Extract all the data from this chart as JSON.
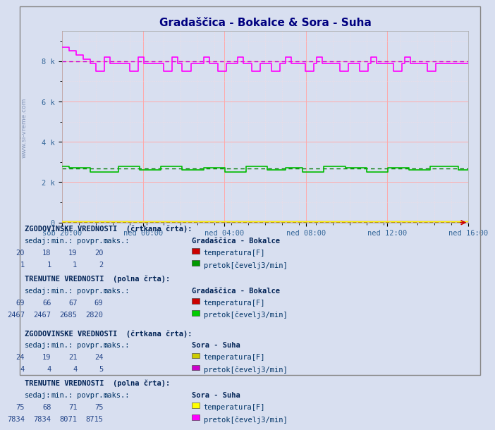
{
  "title": "Gradaščica - Bokalce & Sora - Suha",
  "bg_color": "#d8dff0",
  "ylim": [
    0,
    9500
  ],
  "yticks": [
    0,
    2000,
    4000,
    6000,
    8000
  ],
  "ytick_labels": [
    "0",
    "2 k",
    "4 k",
    "6 k",
    "8 k"
  ],
  "xtick_labels": [
    "sob 20:00",
    "ned 00:00",
    "ned 04:00",
    "ned 08:00",
    "ned 12:00",
    "ned 16:00"
  ],
  "n_points": 288,
  "grid_color": "#ffaaaa",
  "grid_minor_color": "#ffdddd",
  "title_color": "#000080",
  "axis_label_color": "#336699",
  "bokalce_temp_hist_color": "#cc0000",
  "bokalce_pretok_hist_color": "#007700",
  "bokalce_temp_curr_color": "#cc0000",
  "bokalce_pretok_curr_color": "#00bb00",
  "suha_temp_hist_color": "#aaaa00",
  "suha_pretok_hist_color": "#cc00cc",
  "suha_temp_curr_color": "#ffff00",
  "suha_pretok_curr_color": "#ff00ff",
  "legend_bokalce_temp_hist": "#cc0000",
  "legend_bokalce_pretok_hist": "#009900",
  "legend_bokalce_temp_curr": "#cc0000",
  "legend_bokalce_pretok_curr": "#00cc00",
  "legend_suha_temp_hist": "#cccc00",
  "legend_suha_pretok_hist": "#cc00cc",
  "legend_suha_temp_curr": "#ffff00",
  "legend_suha_pretok_curr": "#ff00ff"
}
